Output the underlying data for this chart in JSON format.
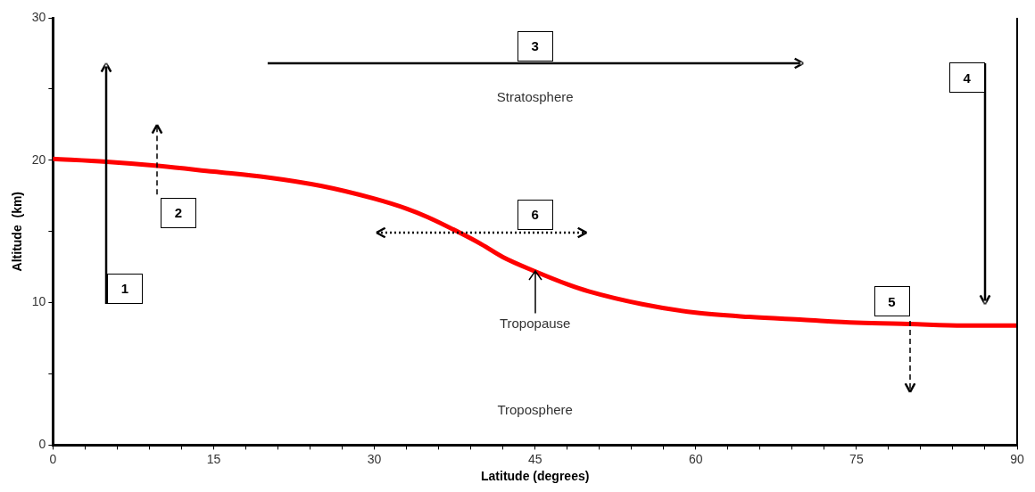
{
  "chart_data": {
    "type": "line",
    "xlabel": "Latitude (degrees)",
    "ylabel": "Altitude  (km)",
    "x": [
      0,
      5,
      10,
      15,
      20,
      25,
      30,
      33,
      35,
      38,
      40,
      42,
      45,
      48,
      50,
      55,
      60,
      65,
      70,
      75,
      80,
      85,
      90
    ],
    "series": [
      {
        "color": "#ff0000",
        "values": [
          20.1,
          19.9,
          19.6,
          19.2,
          18.8,
          18.2,
          17.3,
          16.6,
          16.0,
          14.9,
          14.1,
          13.2,
          12.2,
          11.3,
          10.8,
          9.9,
          9.3,
          9.0,
          8.8,
          8.6,
          8.5,
          8.4,
          8.4
        ]
      }
    ],
    "xlim": [
      0,
      90
    ],
    "ylim": [
      0,
      30
    ],
    "xticks": [
      0,
      {
        "value": 3,
        "label": null
      },
      {
        "value": 6,
        "label": null
      },
      {
        "value": 9,
        "label": null
      },
      {
        "value": 12,
        "label": null
      },
      15,
      {
        "value": 18,
        "label": null
      },
      {
        "value": 21,
        "label": null
      },
      {
        "value": 24,
        "label": null
      },
      {
        "value": 27,
        "label": null
      },
      30,
      {
        "value": 33,
        "label": null
      },
      {
        "value": 36,
        "label": null
      },
      {
        "value": 39,
        "label": null
      },
      {
        "value": 42,
        "label": null
      },
      45,
      {
        "value": 48,
        "label": null
      },
      {
        "value": 51,
        "label": null
      },
      {
        "value": 54,
        "label": null
      },
      {
        "value": 57,
        "label": null
      },
      60,
      {
        "value": 63,
        "label": null
      },
      {
        "value": 66,
        "label": null
      },
      {
        "value": 69,
        "label": null
      },
      {
        "value": 72,
        "label": null
      },
      75,
      {
        "value": 78,
        "label": null
      },
      {
        "value": 81,
        "label": null
      },
      {
        "value": 84,
        "label": null
      },
      {
        "value": 87,
        "label": null
      },
      90
    ],
    "yticks": [
      0,
      {
        "value": 5,
        "label": null
      },
      10,
      {
        "value": 15,
        "label": null
      },
      20,
      {
        "value": 25,
        "label": null
      },
      30
    ],
    "grid": false,
    "legend": false,
    "marker": "none",
    "line_style": "solid",
    "annotations": [
      "Stratosphere",
      "Troposphere",
      {
        "text": "Tropopause",
        "x": 45,
        "y": 12.2
      },
      "1",
      "2",
      "3",
      "4",
      "5",
      "6"
    ]
  }
}
